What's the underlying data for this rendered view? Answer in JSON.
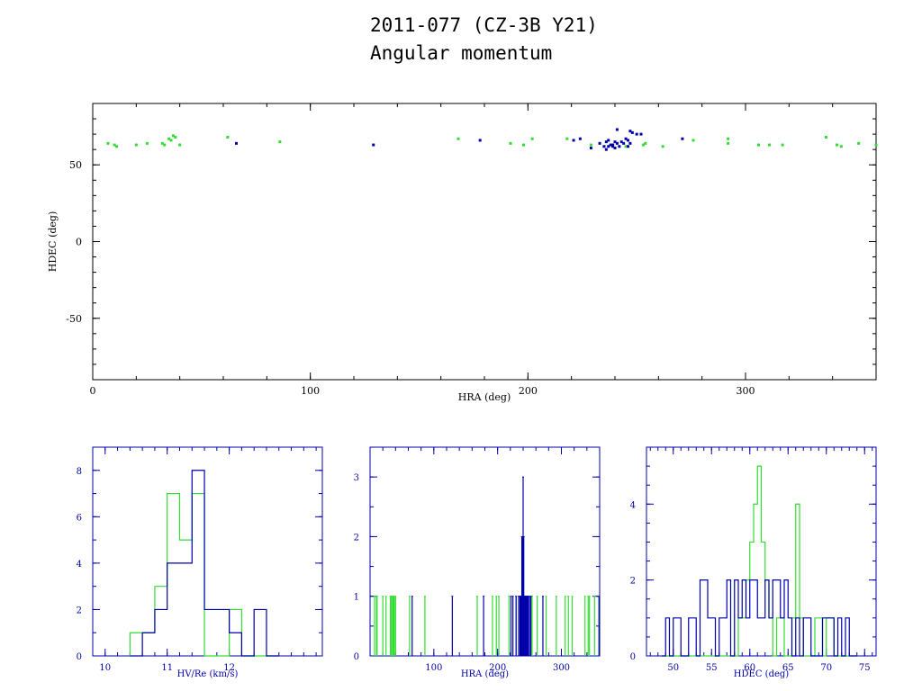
{
  "title": "2011-077 (CZ-3B Y21)",
  "subtitle": "Angular momentum",
  "colors": {
    "green": "#33dd33",
    "blue": "#0000aa",
    "axis": "#000000"
  },
  "chart_data": [
    {
      "type": "scatter",
      "xlabel": "HRA (deg)",
      "ylabel": "HDEC (deg)",
      "xlim": [
        0,
        360
      ],
      "ylim": [
        -90,
        90
      ],
      "xticks": [
        0,
        100,
        200,
        300
      ],
      "yticks": [
        -50,
        0,
        50
      ],
      "series": [
        {
          "color": "green",
          "points": [
            [
              7,
              64
            ],
            [
              10,
              63
            ],
            [
              11,
              62
            ],
            [
              20,
              63
            ],
            [
              25,
              64
            ],
            [
              32,
              64
            ],
            [
              33,
              63
            ],
            [
              35,
              67
            ],
            [
              36,
              66
            ],
            [
              37,
              69
            ],
            [
              38,
              68
            ],
            [
              40,
              63
            ],
            [
              62,
              68
            ],
            [
              86,
              65
            ],
            [
              168,
              67
            ],
            [
              192,
              64
            ],
            [
              198,
              63
            ],
            [
              202,
              67
            ],
            [
              218,
              67
            ],
            [
              229,
              63
            ],
            [
              245,
              62
            ],
            [
              253,
              63
            ],
            [
              254,
              64
            ],
            [
              262,
              62
            ],
            [
              276,
              66
            ],
            [
              292,
              67
            ],
            [
              292,
              64
            ],
            [
              306,
              63
            ],
            [
              311,
              63
            ],
            [
              317,
              63
            ],
            [
              337,
              68
            ],
            [
              342,
              63
            ],
            [
              344,
              62
            ],
            [
              352,
              64
            ],
            [
              360,
              63
            ]
          ]
        },
        {
          "color": "blue",
          "points": [
            [
              66,
              64
            ],
            [
              129,
              63
            ],
            [
              178,
              66
            ],
            [
              221,
              66
            ],
            [
              224,
              67
            ],
            [
              229,
              61
            ],
            [
              233,
              64
            ],
            [
              235,
              62
            ],
            [
              236,
              65
            ],
            [
              236,
              60
            ],
            [
              237,
              62
            ],
            [
              237,
              66
            ],
            [
              238,
              63
            ],
            [
              239,
              63
            ],
            [
              239,
              62
            ],
            [
              240,
              65
            ],
            [
              240,
              61
            ],
            [
              241,
              64
            ],
            [
              241,
              73
            ],
            [
              242,
              62
            ],
            [
              243,
              65
            ],
            [
              244,
              64
            ],
            [
              245,
              67
            ],
            [
              246,
              66
            ],
            [
              246,
              62
            ],
            [
              247,
              72
            ],
            [
              247,
              64
            ],
            [
              248,
              71
            ],
            [
              250,
              70
            ],
            [
              252,
              70
            ],
            [
              271,
              67
            ]
          ]
        }
      ]
    },
    {
      "type": "histogram",
      "xlabel": "HV/Re (km/s)",
      "xlim": [
        9.8,
        13.5
      ],
      "ylim": [
        0,
        9
      ],
      "xticks": [
        10,
        11,
        12
      ],
      "yticks": [
        0,
        2,
        4,
        6,
        8
      ],
      "bin_width": 0.2,
      "series": [
        {
          "color": "green",
          "x_start": 10.4,
          "counts": [
            1,
            1,
            3,
            7,
            5,
            7,
            0,
            0,
            2,
            0,
            0,
            0
          ]
        },
        {
          "color": "blue",
          "x_start": 10.4,
          "counts": [
            0,
            1,
            2,
            4,
            4,
            8,
            2,
            2,
            1,
            0,
            2,
            0
          ]
        }
      ]
    },
    {
      "type": "histogram",
      "xlabel": "HRA (deg)",
      "xlim": [
        0,
        360
      ],
      "ylim": [
        0,
        3.5
      ],
      "xticks": [
        100,
        200,
        300
      ],
      "yticks": [
        0,
        1,
        2,
        3
      ],
      "series": [
        {
          "color": "green",
          "spikes": [
            [
              7,
              1
            ],
            [
              10,
              1
            ],
            [
              11,
              1
            ],
            [
              20,
              1
            ],
            [
              25,
              1
            ],
            [
              32,
              1
            ],
            [
              33,
              1
            ],
            [
              35,
              1
            ],
            [
              36,
              1
            ],
            [
              37,
              1
            ],
            [
              38,
              1
            ],
            [
              40,
              1
            ],
            [
              62,
              1
            ],
            [
              86,
              1
            ],
            [
              168,
              1
            ],
            [
              192,
              1
            ],
            [
              198,
              1
            ],
            [
              202,
              1
            ],
            [
              218,
              1
            ],
            [
              229,
              1
            ],
            [
              245,
              1
            ],
            [
              253,
              1
            ],
            [
              254,
              1
            ],
            [
              262,
              1
            ],
            [
              276,
              1
            ],
            [
              292,
              1
            ],
            [
              306,
              1
            ],
            [
              311,
              1
            ],
            [
              317,
              1
            ],
            [
              337,
              1
            ],
            [
              342,
              1
            ],
            [
              344,
              1
            ],
            [
              352,
              1
            ],
            [
              359,
              1
            ]
          ]
        },
        {
          "color": "blue",
          "spikes": [
            [
              66,
              1
            ],
            [
              129,
              1
            ],
            [
              178,
              1
            ],
            [
              221,
              1
            ],
            [
              224,
              1
            ],
            [
              229,
              1
            ],
            [
              233,
              1
            ],
            [
              235,
              1
            ],
            [
              236,
              1
            ],
            [
              237,
              1
            ],
            [
              238,
              2
            ],
            [
              239,
              2
            ],
            [
              240,
              3
            ],
            [
              241,
              2
            ],
            [
              242,
              1
            ],
            [
              243,
              1
            ],
            [
              244,
              1
            ],
            [
              245,
              1
            ],
            [
              246,
              1
            ],
            [
              247,
              1
            ],
            [
              248,
              1
            ],
            [
              250,
              1
            ],
            [
              252,
              1
            ],
            [
              271,
              1
            ],
            [
              359,
              1
            ]
          ]
        }
      ]
    },
    {
      "type": "histogram",
      "xlabel": "HDEC (deg)",
      "xlim": [
        46.5,
        76.5
      ],
      "ylim": [
        0,
        5.5
      ],
      "xticks": [
        50,
        55,
        60,
        65,
        70,
        75
      ],
      "yticks": [
        0,
        2,
        4
      ],
      "bin_width": 0.5,
      "series": [
        {
          "color": "green",
          "x_start": 48.5,
          "counts": [
            0,
            0,
            0,
            0,
            0,
            0,
            0,
            0,
            0,
            0,
            0,
            0,
            0,
            0,
            0,
            0,
            0,
            0,
            0,
            0,
            1,
            1,
            2,
            3,
            4,
            5,
            3,
            2,
            1,
            0,
            1,
            1,
            0,
            0,
            1,
            4,
            1,
            0,
            0,
            0,
            1,
            1,
            0,
            1,
            1,
            0,
            0,
            0,
            0,
            0,
            0
          ]
        },
        {
          "color": "blue",
          "x_start": 48.5,
          "counts": [
            0,
            1,
            0,
            1,
            1,
            0,
            0,
            1,
            1,
            0,
            2,
            2,
            1,
            1,
            0,
            1,
            1,
            2,
            0,
            2,
            1,
            2,
            1,
            2,
            2,
            1,
            1,
            2,
            1,
            2,
            2,
            1,
            2,
            1,
            0,
            1,
            0,
            1,
            1,
            0,
            0,
            0,
            1,
            1,
            1,
            0,
            1,
            0,
            1,
            0,
            0
          ]
        }
      ]
    }
  ]
}
